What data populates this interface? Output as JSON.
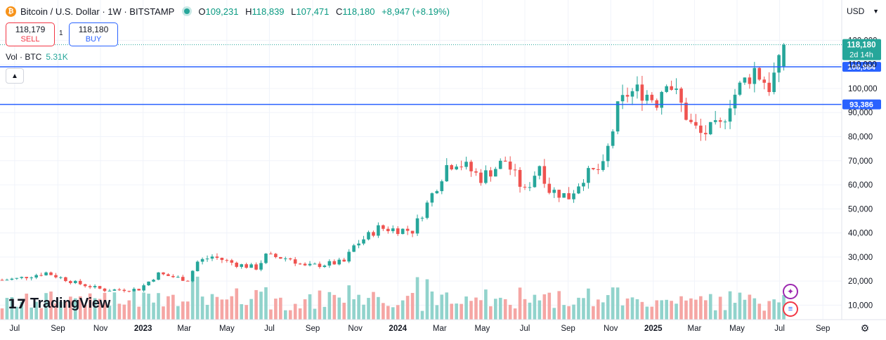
{
  "header": {
    "coin_symbol": "₿",
    "title": "Bitcoin / U.S. Dollar · 1W · BITSTAMP",
    "open_key": "O",
    "open": "109,231",
    "high_key": "H",
    "high": "118,839",
    "low_key": "L",
    "low": "107,471",
    "close_key": "C",
    "close": "118,180",
    "change": "+8,947 (+8.19%)"
  },
  "trade": {
    "sell_price": "118,179",
    "sell_label": "SELL",
    "spread": "1",
    "buy_price": "118,180",
    "buy_label": "BUY"
  },
  "volume": {
    "label": "Vol · BTC",
    "value": "5.31K"
  },
  "currency": {
    "label": "USD"
  },
  "logo": {
    "symbol": "17",
    "text": "TradingView"
  },
  "icons": {
    "collapse": "chevron-up-icon",
    "currency_dropdown": "chevron-down-icon",
    "settings": "gear-icon",
    "ai": "sparkle-icon",
    "flag": "us-flag-icon"
  },
  "colors": {
    "up": "#26a69a",
    "down": "#ef5350",
    "vol_up": "#91d3cc",
    "vol_down": "#f5a6a4",
    "hline": "#2962ff",
    "last": "#26a69a"
  },
  "chart_data": {
    "type": "candlestick",
    "title": "Bitcoin / U.S. Dollar · 1W · BITSTAMP",
    "y_ticks": [
      10000,
      20000,
      30000,
      40000,
      50000,
      60000,
      70000,
      80000,
      90000,
      100000,
      110000,
      120000
    ],
    "y_tick_labels": [
      "10,000",
      "20,000",
      "30,000",
      "40,000",
      "50,000",
      "60,000",
      "70,000",
      "80,000",
      "90,000",
      "100,000",
      "110,000",
      "120,000"
    ],
    "ylim": [
      4000,
      128000
    ],
    "x_range": [
      "2022-06-10",
      "2025-09-28"
    ],
    "x_ticks": [
      {
        "date": "2022-07-01",
        "label": "Jul"
      },
      {
        "date": "2022-09-01",
        "label": "Sep"
      },
      {
        "date": "2022-11-01",
        "label": "Nov"
      },
      {
        "date": "2023-01-01",
        "label": "2023"
      },
      {
        "date": "2023-03-01",
        "label": "Mar"
      },
      {
        "date": "2023-05-01",
        "label": "May"
      },
      {
        "date": "2023-07-01",
        "label": "Jul"
      },
      {
        "date": "2023-09-01",
        "label": "Sep"
      },
      {
        "date": "2023-11-01",
        "label": "Nov"
      },
      {
        "date": "2024-01-01",
        "label": "2024"
      },
      {
        "date": "2024-03-01",
        "label": "Mar"
      },
      {
        "date": "2024-05-01",
        "label": "May"
      },
      {
        "date": "2024-07-01",
        "label": "Jul"
      },
      {
        "date": "2024-09-01",
        "label": "Sep"
      },
      {
        "date": "2024-11-01",
        "label": "Nov"
      },
      {
        "date": "2025-01-01",
        "label": "2025"
      },
      {
        "date": "2025-03-01",
        "label": "Mar"
      },
      {
        "date": "2025-05-01",
        "label": "May"
      },
      {
        "date": "2025-07-01",
        "label": "Jul"
      },
      {
        "date": "2025-09-01",
        "label": "Sep"
      }
    ],
    "horizontal_lines": [
      {
        "value": 108984,
        "label": "108,984"
      },
      {
        "value": 93386,
        "label": "93,386"
      }
    ],
    "last_price": {
      "value": 118180,
      "label": "118,180",
      "countdown": "2d 14h"
    },
    "grid": true,
    "anchor_closes": [
      [
        "2022-06-13",
        20500
      ],
      [
        "2022-07-04",
        21000
      ],
      [
        "2022-08-15",
        23500
      ],
      [
        "2022-09-26",
        19300
      ],
      [
        "2022-11-07",
        16300
      ],
      [
        "2022-12-26",
        16600
      ],
      [
        "2023-01-23",
        23000
      ],
      [
        "2023-03-06",
        20500
      ],
      [
        "2023-03-20",
        28000
      ],
      [
        "2023-04-10",
        30200
      ],
      [
        "2023-05-15",
        27000
      ],
      [
        "2023-06-12",
        25500
      ],
      [
        "2023-06-26",
        30500
      ],
      [
        "2023-07-31",
        29300
      ],
      [
        "2023-08-21",
        26000
      ],
      [
        "2023-10-16",
        28000
      ],
      [
        "2023-10-30",
        34500
      ],
      [
        "2023-12-04",
        42000
      ],
      [
        "2024-01-22",
        41000
      ],
      [
        "2024-02-12",
        52000
      ],
      [
        "2024-03-11",
        68000
      ],
      [
        "2024-03-25",
        70000
      ],
      [
        "2024-04-29",
        63000
      ],
      [
        "2024-06-03",
        70000
      ],
      [
        "2024-07-01",
        57000
      ],
      [
        "2024-07-22",
        68500
      ],
      [
        "2024-08-05",
        58000
      ],
      [
        "2024-09-02",
        55000
      ],
      [
        "2024-09-23",
        63500
      ],
      [
        "2024-10-21",
        67000
      ],
      [
        "2024-11-11",
        91000
      ],
      [
        "2024-11-25",
        98000
      ],
      [
        "2024-12-16",
        99000
      ],
      [
        "2025-01-06",
        95000
      ],
      [
        "2025-01-20",
        105000
      ],
      [
        "2025-02-24",
        85000
      ],
      [
        "2025-03-10",
        81000
      ],
      [
        "2025-04-07",
        84000
      ],
      [
        "2025-04-21",
        95000
      ],
      [
        "2025-05-12",
        103000
      ],
      [
        "2025-05-26",
        108000
      ],
      [
        "2025-06-16",
        101000
      ],
      [
        "2025-06-30",
        109231
      ],
      [
        "2025-07-07",
        118180
      ]
    ],
    "volume_label": "Vol · BTC",
    "volume_last": "5.31K"
  }
}
